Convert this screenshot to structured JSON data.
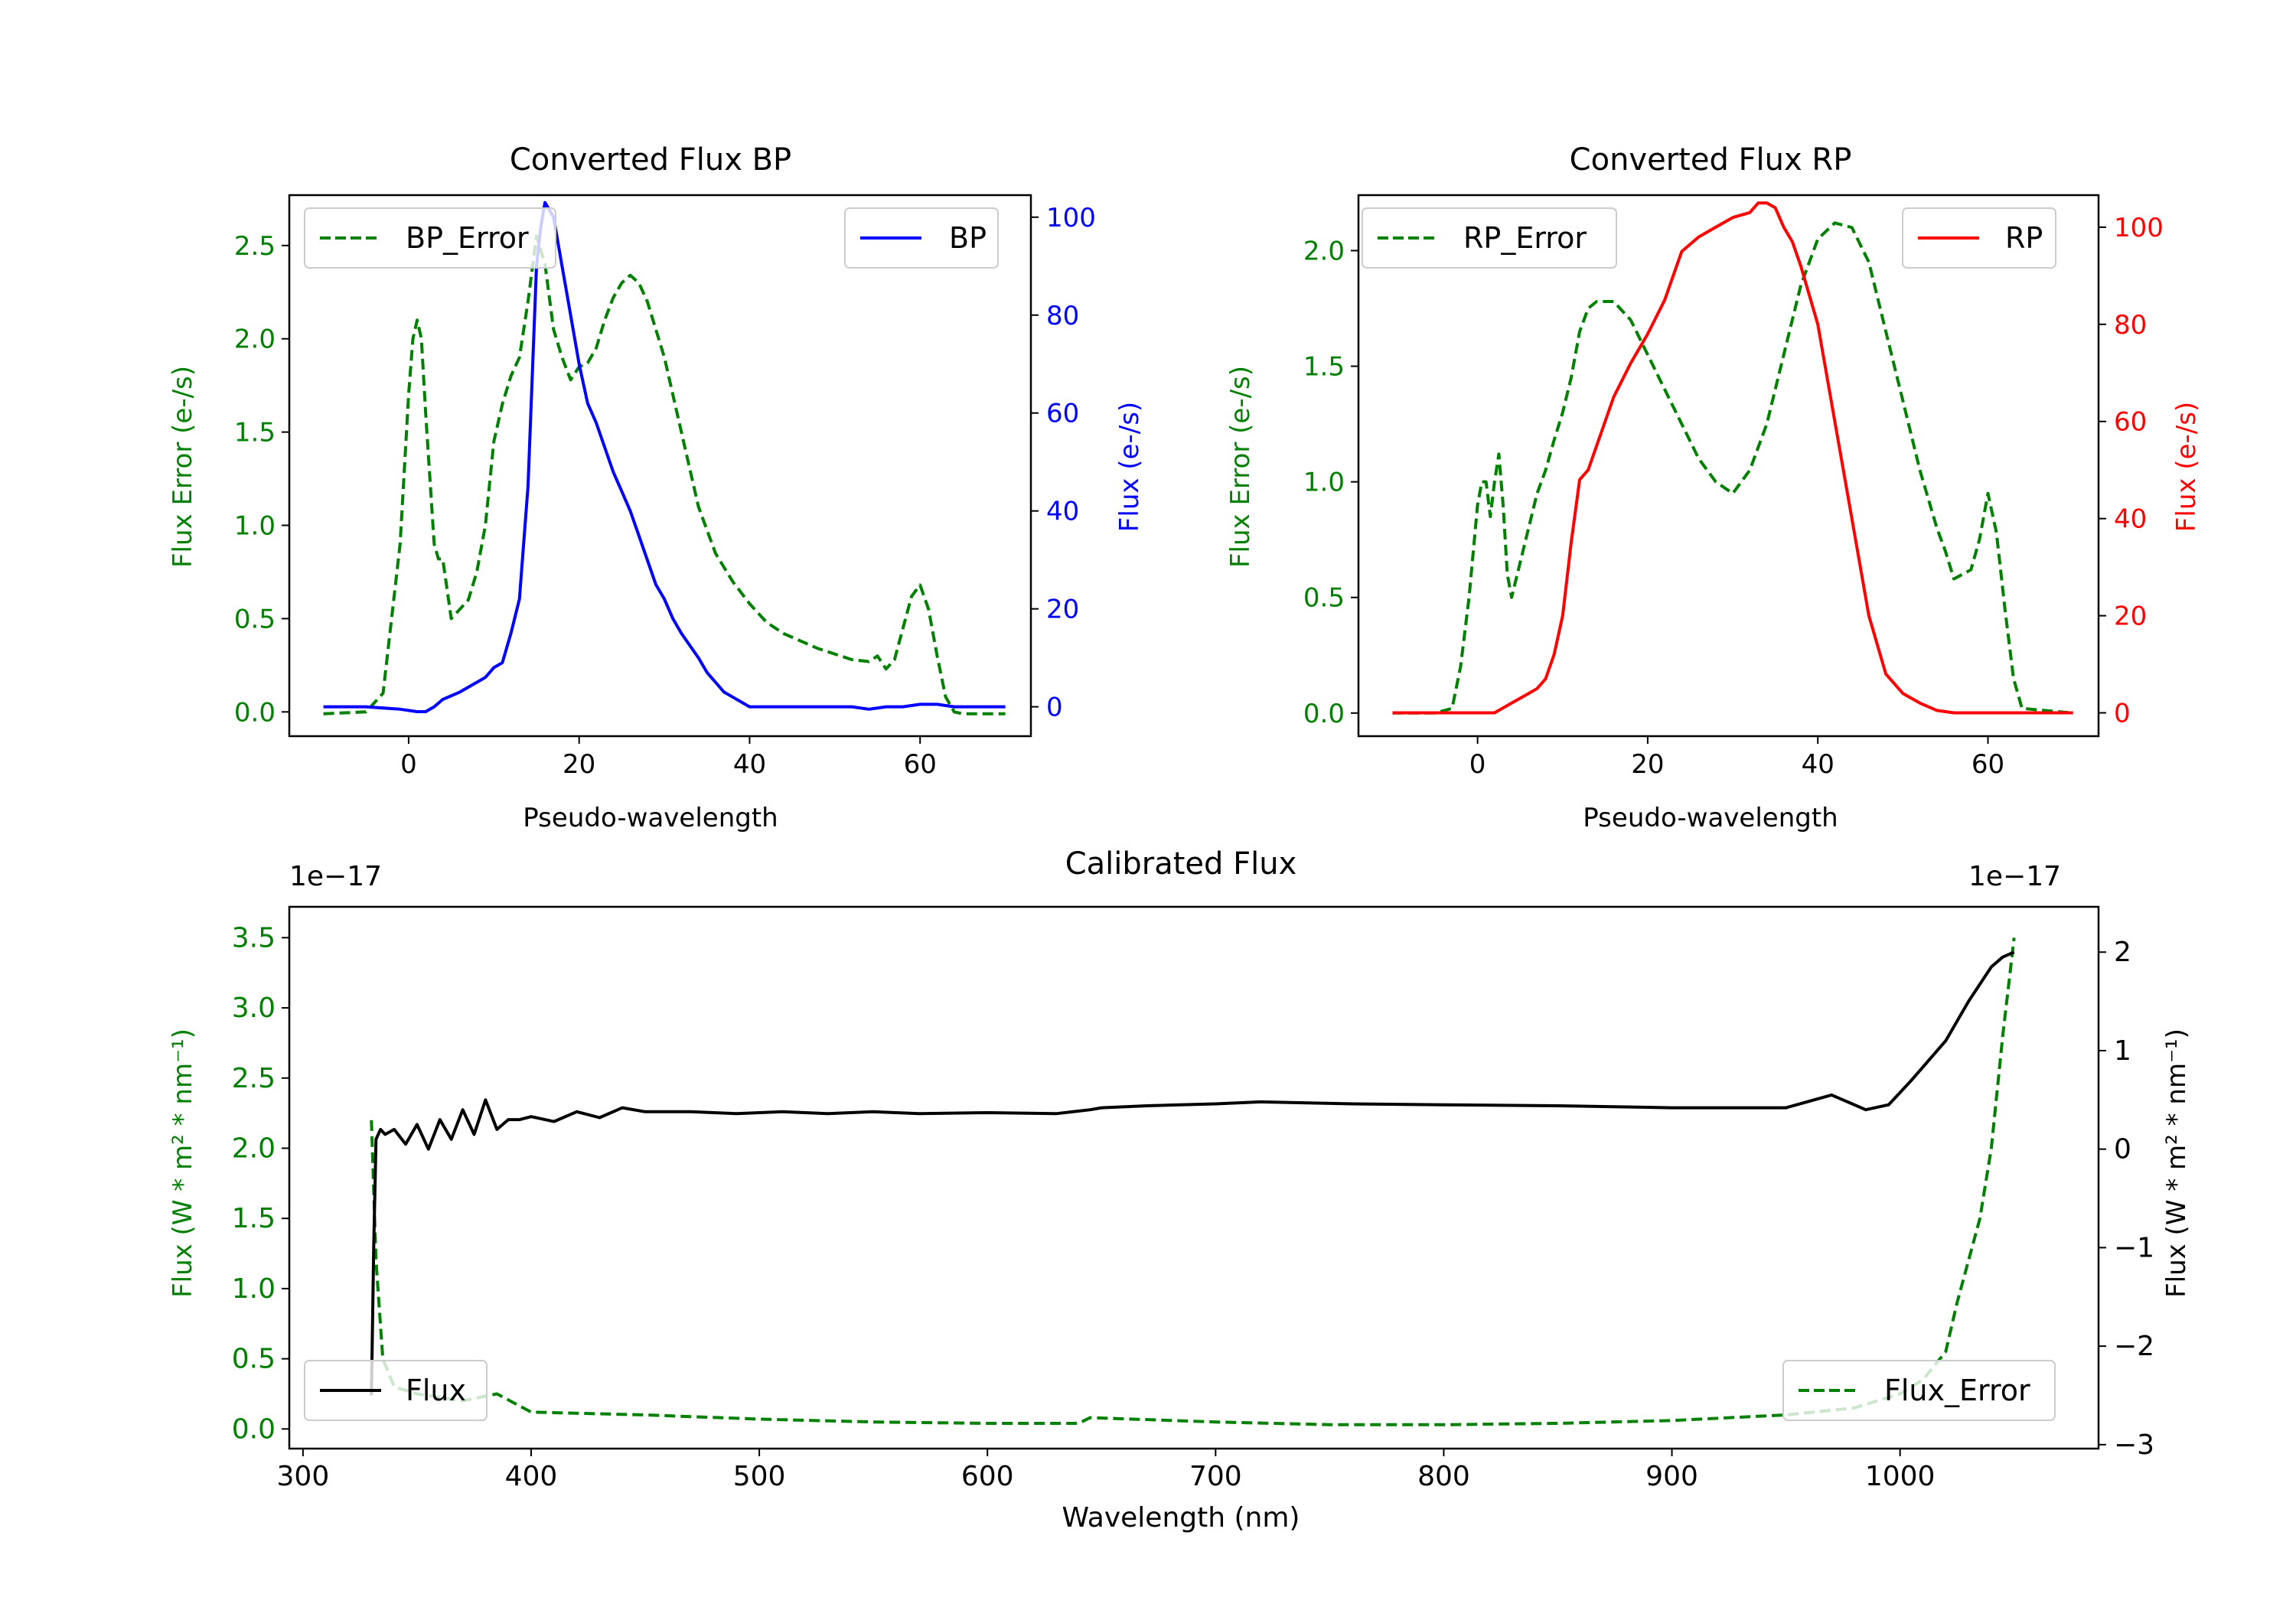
{
  "chart_data": [
    {
      "id": "bp",
      "type": "line",
      "title": "Converted Flux BP",
      "xlabel": "Pseudo-wavelength",
      "ylabel_left": "Flux Error (e-/s)",
      "ylabel_right": "Flux (e-/s)",
      "xlim": [
        -14,
        73
      ],
      "ylim_left": [
        -0.13,
        2.77
      ],
      "ylim_right": [
        -6,
        104.5
      ],
      "xticks": [
        0,
        20,
        40,
        60
      ],
      "xtick_labels": [
        "0",
        "20",
        "40",
        "60"
      ],
      "yticks_left": [
        0.0,
        0.5,
        1.0,
        1.5,
        2.0,
        2.5
      ],
      "ytick_labels_left": [
        "0.0",
        "0.5",
        "1.0",
        "1.5",
        "2.0",
        "2.5"
      ],
      "yticks_right": [
        0,
        20,
        40,
        60,
        80,
        100
      ],
      "ytick_labels_right": [
        "0",
        "20",
        "40",
        "60",
        "80",
        "100"
      ],
      "left_color": "#008000",
      "right_color": "#0000ff",
      "series": [
        {
          "name": "BP_Error",
          "axis": "left",
          "style": "dashed",
          "color": "#008000",
          "x": [
            -10,
            -5,
            -3,
            -1,
            0,
            0.5,
            1,
            1.5,
            2,
            3,
            3.5,
            4,
            5,
            6,
            7,
            8,
            9,
            10,
            11,
            12,
            13,
            14,
            15,
            16,
            17,
            18,
            19,
            20,
            21,
            22,
            23,
            24,
            25,
            26,
            27,
            28,
            30,
            32,
            34,
            36,
            38,
            40,
            42,
            44,
            46,
            48,
            50,
            52,
            54,
            55,
            56,
            57,
            58,
            59,
            60,
            61,
            62,
            63,
            64,
            65,
            70
          ],
          "y": [
            -0.01,
            0.0,
            0.1,
            0.9,
            1.7,
            2.0,
            2.1,
            2.0,
            1.6,
            0.9,
            0.82,
            0.82,
            0.5,
            0.55,
            0.6,
            0.75,
            1.0,
            1.45,
            1.65,
            1.8,
            1.9,
            2.2,
            2.55,
            2.4,
            2.05,
            1.9,
            1.78,
            1.85,
            1.87,
            1.95,
            2.1,
            2.22,
            2.3,
            2.34,
            2.3,
            2.2,
            1.9,
            1.5,
            1.1,
            0.85,
            0.7,
            0.58,
            0.48,
            0.42,
            0.38,
            0.34,
            0.31,
            0.28,
            0.27,
            0.3,
            0.23,
            0.28,
            0.45,
            0.62,
            0.68,
            0.55,
            0.3,
            0.08,
            0.0,
            -0.01,
            -0.01
          ]
        },
        {
          "name": "BP",
          "axis": "right",
          "style": "solid",
          "color": "#0000ff",
          "x": [
            -10,
            -5,
            -1,
            1,
            2,
            3,
            4,
            6,
            7,
            9,
            10,
            11,
            12,
            13,
            14,
            15,
            15.5,
            16,
            17,
            18,
            19,
            20,
            21,
            22,
            23,
            24,
            25,
            26,
            27,
            28,
            29,
            30,
            31,
            32,
            34,
            35,
            36,
            37,
            38,
            40,
            42,
            44,
            46,
            48,
            50,
            52,
            54,
            56,
            58,
            60,
            62,
            64,
            66,
            70
          ],
          "y": [
            0,
            0,
            -0.5,
            -1,
            -1,
            0,
            1.5,
            3,
            4,
            6,
            8,
            9,
            15,
            22,
            45,
            90,
            98,
            103,
            100,
            90,
            80,
            70,
            62,
            58,
            53,
            48,
            44,
            40,
            35,
            30,
            25,
            22,
            18,
            15,
            10,
            7,
            5,
            3,
            2,
            0,
            0,
            0,
            0,
            0,
            0,
            0,
            -0.5,
            0,
            0,
            0.5,
            0.5,
            0,
            0,
            0
          ]
        }
      ],
      "legend": [
        {
          "label": "BP_Error",
          "placement": "upper-left"
        },
        {
          "label": "BP",
          "placement": "upper-right"
        }
      ]
    },
    {
      "id": "rp",
      "type": "line",
      "title": "Converted Flux RP",
      "xlabel": "Pseudo-wavelength",
      "ylabel_left": "Flux Error (e-/s)",
      "ylabel_right": "Flux (e-/s)",
      "xlim": [
        -14,
        73
      ],
      "ylim_left": [
        -0.1,
        2.24
      ],
      "ylim_right": [
        -4.8,
        106.6
      ],
      "xticks": [
        0,
        20,
        40,
        60
      ],
      "xtick_labels": [
        "0",
        "20",
        "40",
        "60"
      ],
      "yticks_left": [
        0.0,
        0.5,
        1.0,
        1.5,
        2.0
      ],
      "ytick_labels_left": [
        "0.0",
        "0.5",
        "1.0",
        "1.5",
        "2.0"
      ],
      "yticks_right": [
        0,
        20,
        40,
        60,
        80,
        100
      ],
      "ytick_labels_right": [
        "0",
        "20",
        "40",
        "60",
        "80",
        "100"
      ],
      "left_color": "#008000",
      "right_color": "#ff0000",
      "series": [
        {
          "name": "RP_Error",
          "axis": "left",
          "style": "dashed",
          "color": "#008000",
          "x": [
            -10,
            -5,
            -3,
            -2,
            -1,
            0,
            0.5,
            1,
            1.5,
            2,
            2.5,
            3,
            3.5,
            4,
            5,
            6,
            7,
            8,
            9,
            10,
            11,
            12,
            13,
            14,
            16,
            18,
            20,
            22,
            24,
            26,
            28,
            30,
            32,
            34,
            36,
            38,
            40,
            42,
            44,
            46,
            48,
            50,
            52,
            54,
            55,
            56,
            57,
            58,
            59,
            60,
            61,
            62,
            63,
            64,
            70
          ],
          "y": [
            0,
            0,
            0.02,
            0.2,
            0.5,
            0.9,
            1.0,
            1.0,
            0.85,
            1.0,
            1.12,
            0.9,
            0.6,
            0.5,
            0.65,
            0.8,
            0.95,
            1.05,
            1.18,
            1.3,
            1.45,
            1.65,
            1.75,
            1.78,
            1.78,
            1.7,
            1.55,
            1.4,
            1.25,
            1.1,
            1.0,
            0.95,
            1.05,
            1.25,
            1.55,
            1.85,
            2.05,
            2.12,
            2.1,
            1.95,
            1.65,
            1.35,
            1.05,
            0.8,
            0.7,
            0.58,
            0.6,
            0.62,
            0.75,
            0.95,
            0.78,
            0.45,
            0.15,
            0.02,
            0.0
          ]
        },
        {
          "name": "RP",
          "axis": "right",
          "style": "solid",
          "color": "#ff0000",
          "x": [
            -10,
            -5,
            0,
            2,
            4,
            6,
            7,
            8,
            9,
            10,
            11,
            12,
            13,
            14,
            16,
            18,
            20,
            22,
            24,
            26,
            28,
            30,
            32,
            33,
            34,
            35,
            36,
            37,
            38,
            40,
            42,
            44,
            46,
            48,
            50,
            52,
            54,
            56,
            58,
            60,
            62,
            64,
            66,
            70
          ],
          "y": [
            0,
            0,
            0,
            0,
            2,
            4,
            5,
            7,
            12,
            20,
            35,
            48,
            50,
            55,
            65,
            72,
            78,
            85,
            95,
            98,
            100,
            102,
            103,
            105,
            105,
            104,
            100,
            97,
            92,
            80,
            60,
            40,
            20,
            8,
            4,
            2,
            0.5,
            0,
            0,
            0,
            0,
            0,
            0,
            0
          ]
        }
      ],
      "legend": [
        {
          "label": "RP_Error",
          "placement": "upper-left"
        },
        {
          "label": "RP",
          "placement": "upper-right"
        }
      ]
    },
    {
      "id": "cal",
      "type": "line",
      "title": "Calibrated Flux",
      "xlabel": "Wavelength (nm)",
      "ylabel_left": "Flux (W * m² * nm⁻¹)",
      "ylabel_right": "Flux (W * m² * nm⁻¹)",
      "offset_left": "1e−17",
      "offset_right": "1e−17",
      "xlim": [
        294,
        1087
      ],
      "ylim_left": [
        -0.14,
        3.72
      ],
      "ylim_right": [
        -3.04,
        2.46
      ],
      "xticks": [
        300,
        400,
        500,
        600,
        700,
        800,
        900,
        1000
      ],
      "xtick_labels": [
        "300",
        "400",
        "500",
        "600",
        "700",
        "800",
        "900",
        "1000"
      ],
      "yticks_left": [
        0.0,
        0.5,
        1.0,
        1.5,
        2.0,
        2.5,
        3.0,
        3.5
      ],
      "ytick_labels_left": [
        "0.0",
        "0.5",
        "1.0",
        "1.5",
        "2.0",
        "2.5",
        "3.0",
        "3.5"
      ],
      "yticks_right": [
        -3,
        -2,
        -1,
        0,
        1,
        2
      ],
      "ytick_labels_right": [
        "−3",
        "−2",
        "−1",
        "0",
        "1",
        "2"
      ],
      "left_color": "#008000",
      "right_color": "#000000",
      "series": [
        {
          "name": "Flux_Error",
          "axis": "left",
          "style": "dashed",
          "color": "#008000",
          "x": [
            330,
            332,
            335,
            340,
            350,
            370,
            385,
            400,
            450,
            500,
            550,
            600,
            640,
            645,
            700,
            750,
            800,
            850,
            900,
            950,
            980,
            1000,
            1010,
            1020,
            1025,
            1030,
            1035,
            1040,
            1045,
            1050
          ],
          "y": [
            2.2,
            1.2,
            0.5,
            0.3,
            0.25,
            0.2,
            0.25,
            0.12,
            0.1,
            0.07,
            0.05,
            0.04,
            0.04,
            0.08,
            0.05,
            0.03,
            0.03,
            0.04,
            0.06,
            0.1,
            0.15,
            0.25,
            0.35,
            0.55,
            0.9,
            1.2,
            1.5,
            2.0,
            2.8,
            3.5
          ]
        },
        {
          "name": "Flux",
          "axis": "right",
          "style": "solid",
          "color": "#000000",
          "x": [
            330,
            331,
            332,
            334,
            336,
            340,
            345,
            350,
            355,
            360,
            365,
            370,
            375,
            380,
            385,
            390,
            395,
            400,
            410,
            420,
            430,
            440,
            450,
            470,
            490,
            510,
            530,
            550,
            570,
            600,
            630,
            645,
            650,
            670,
            700,
            720,
            760,
            800,
            850,
            900,
            950,
            970,
            985,
            995,
            1005,
            1020,
            1030,
            1040,
            1045,
            1050
          ],
          "y": [
            -2.5,
            -1.0,
            0.1,
            0.2,
            0.15,
            0.2,
            0.05,
            0.25,
            0.0,
            0.3,
            0.1,
            0.4,
            0.15,
            0.5,
            0.2,
            0.3,
            0.3,
            0.33,
            0.28,
            0.38,
            0.32,
            0.42,
            0.38,
            0.38,
            0.36,
            0.38,
            0.36,
            0.38,
            0.36,
            0.37,
            0.36,
            0.4,
            0.42,
            0.44,
            0.46,
            0.48,
            0.46,
            0.45,
            0.44,
            0.42,
            0.42,
            0.55,
            0.4,
            0.45,
            0.7,
            1.1,
            1.5,
            1.85,
            1.95,
            2.0
          ]
        }
      ],
      "legend": [
        {
          "label": "Flux",
          "placement": "lower-left"
        },
        {
          "label": "Flux_Error",
          "placement": "lower-right"
        }
      ]
    }
  ]
}
